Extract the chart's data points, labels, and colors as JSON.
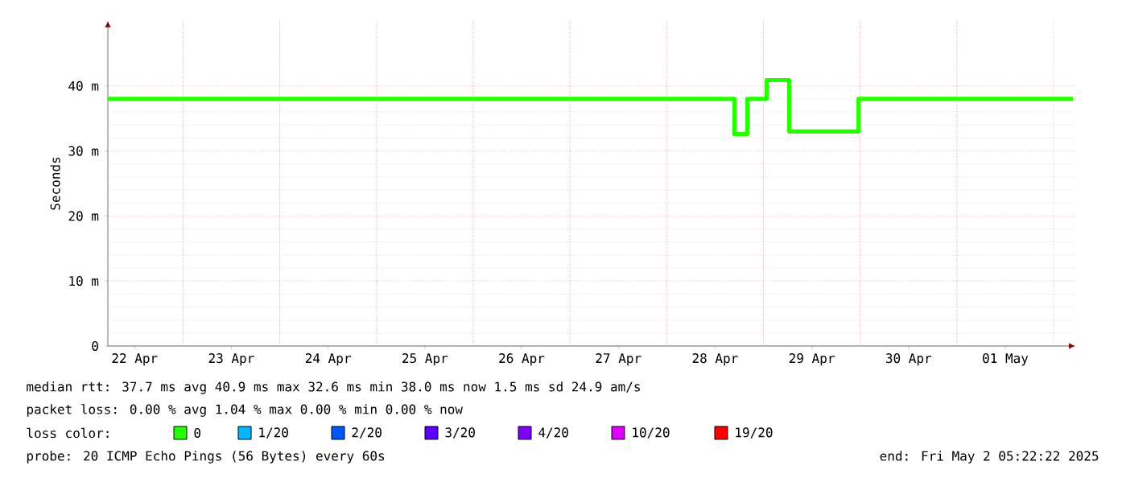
{
  "chart_data": {
    "type": "step",
    "ylabel": "Seconds",
    "x": [
      "2025-04-22T05:22",
      "2025-04-28T16:48",
      "2025-04-28T20:00",
      "2025-04-29T00:48",
      "2025-04-29T06:24",
      "2025-04-29T23:36",
      "2025-05-02T04:48"
    ],
    "xlim": [
      "2025-04-22T05:22",
      "2025-05-02T05:22"
    ],
    "xticks": [
      {
        "value": "2025-04-22T12:00",
        "label": "22 Apr"
      },
      {
        "value": "2025-04-23T12:00",
        "label": "23 Apr"
      },
      {
        "value": "2025-04-24T12:00",
        "label": "24 Apr"
      },
      {
        "value": "2025-04-25T12:00",
        "label": "25 Apr"
      },
      {
        "value": "2025-04-26T12:00",
        "label": "26 Apr"
      },
      {
        "value": "2025-04-27T12:00",
        "label": "27 Apr"
      },
      {
        "value": "2025-04-28T12:00",
        "label": "28 Apr"
      },
      {
        "value": "2025-04-29T12:00",
        "label": "29 Apr"
      },
      {
        "value": "2025-04-30T12:00",
        "label": "30 Apr"
      },
      {
        "value": "2025-05-01T12:00",
        "label": "01 May"
      },
      {
        "value": "2025-04-23",
        "label": null
      },
      {
        "value": "2025-04-24",
        "label": null
      },
      {
        "value": "2025-04-25",
        "label": null
      },
      {
        "value": "2025-04-26",
        "label": null
      },
      {
        "value": "2025-04-27",
        "label": null
      },
      {
        "value": "2025-04-28",
        "label": null
      },
      {
        "value": "2025-04-29",
        "label": null
      },
      {
        "value": "2025-04-30",
        "label": null
      },
      {
        "value": "2025-05-01",
        "label": null
      },
      {
        "value": "2025-05-02",
        "label": null
      }
    ],
    "ylim": [
      0,
      50
    ],
    "yticks": [
      {
        "value": 0,
        "label": "0"
      },
      {
        "value": 10,
        "label": "10 m"
      },
      {
        "value": 20,
        "label": "20 m"
      },
      {
        "value": 30,
        "label": "30 m"
      },
      {
        "value": 40,
        "label": "40 m"
      }
    ],
    "grid": true,
    "legend": "bottom",
    "legend_title": "loss color:",
    "series": [
      {
        "name": "0",
        "color": "#26ff00",
        "values": [
          38,
          32.6,
          38,
          40.9,
          33,
          38,
          38
        ]
      },
      {
        "name": "1/20",
        "color": "#00b8ff",
        "values": [
          null,
          null,
          null,
          null,
          null,
          null,
          null
        ]
      },
      {
        "name": "2/20",
        "color": "#0059ff",
        "values": [
          null,
          null,
          null,
          null,
          null,
          null,
          null
        ]
      },
      {
        "name": "3/20",
        "color": "#5e00ff",
        "values": [
          null,
          null,
          null,
          null,
          null,
          null,
          null
        ]
      },
      {
        "name": "4/20",
        "color": "#7e00ff",
        "values": [
          null,
          null,
          null,
          null,
          null,
          null,
          null
        ]
      },
      {
        "name": "10/20",
        "color": "#dd00ff",
        "values": [
          null,
          null,
          null,
          null,
          null,
          null,
          null
        ]
      },
      {
        "name": "19/20",
        "color": "#ff0000",
        "values": [
          null,
          null,
          null,
          null,
          null,
          null,
          null
        ]
      }
    ],
    "annotations": [
      "median rtt:  37.7 ms avg  40.9 ms max  32.6 ms min  38.0 ms now  1.5 ms sd  24.9   am/s",
      "packet loss: 0.00 % avg  1.04 % max  0.00 % min  0.00 % now",
      "probe:       20 ICMP Echo Pings (56 Bytes) every 60s",
      "end: Fri May  2 05:22:22 2025"
    ]
  }
}
